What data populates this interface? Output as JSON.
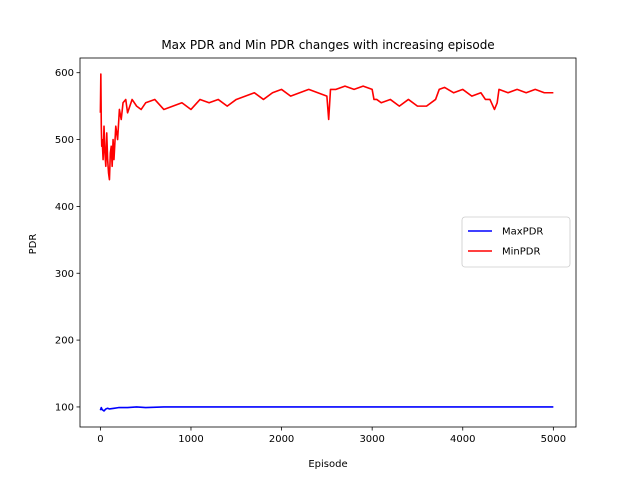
{
  "chart_data": {
    "type": "line",
    "title": "Max PDR and Min PDR changes with increasing episode",
    "xlabel": "Episode",
    "ylabel": "PDR",
    "xlim": [
      -225,
      5250
    ],
    "ylim": [
      70,
      622
    ],
    "xticks": [
      0,
      1000,
      2000,
      3000,
      4000,
      5000
    ],
    "yticks": [
      100,
      200,
      300,
      400,
      500,
      600
    ],
    "grid": false,
    "legend_position": "center-right",
    "series": [
      {
        "name": "MaxPDR",
        "color": "#0000ff",
        "x": [
          0,
          10,
          20,
          40,
          60,
          80,
          100,
          150,
          200,
          300,
          400,
          500,
          700,
          1000,
          1500,
          2000,
          2500,
          3000,
          3500,
          4000,
          4500,
          5000
        ],
        "y": [
          95,
          99,
          96,
          94,
          97,
          98,
          97,
          98,
          99,
          99,
          100,
          99,
          100,
          100,
          100,
          100,
          100,
          100,
          100,
          100,
          100,
          100
        ]
      },
      {
        "name": "MinPDR",
        "color": "#ff0000",
        "x": [
          0,
          5,
          10,
          15,
          20,
          30,
          40,
          50,
          60,
          70,
          80,
          90,
          100,
          110,
          120,
          130,
          140,
          150,
          170,
          190,
          210,
          230,
          250,
          280,
          300,
          350,
          400,
          450,
          500,
          600,
          700,
          800,
          900,
          1000,
          1100,
          1200,
          1300,
          1400,
          1500,
          1600,
          1700,
          1800,
          1900,
          2000,
          2100,
          2200,
          2300,
          2400,
          2500,
          2520,
          2540,
          2600,
          2700,
          2800,
          2900,
          3000,
          3020,
          3050,
          3100,
          3200,
          3300,
          3400,
          3500,
          3600,
          3700,
          3740,
          3800,
          3900,
          4000,
          4100,
          4200,
          4250,
          4300,
          4350,
          4380,
          4400,
          4500,
          4600,
          4700,
          4800,
          4900,
          5000
        ],
        "y": [
          540,
          598,
          520,
          490,
          500,
          470,
          520,
          480,
          460,
          510,
          470,
          450,
          440,
          480,
          490,
          460,
          500,
          470,
          520,
          500,
          545,
          530,
          555,
          560,
          540,
          560,
          550,
          545,
          555,
          560,
          545,
          550,
          555,
          545,
          560,
          555,
          560,
          550,
          560,
          565,
          570,
          560,
          570,
          575,
          565,
          570,
          575,
          570,
          565,
          530,
          575,
          575,
          580,
          575,
          580,
          575,
          560,
          560,
          555,
          560,
          550,
          560,
          550,
          550,
          560,
          575,
          578,
          570,
          575,
          565,
          570,
          560,
          560,
          545,
          555,
          575,
          570,
          575,
          570,
          575,
          570,
          570
        ]
      }
    ]
  }
}
